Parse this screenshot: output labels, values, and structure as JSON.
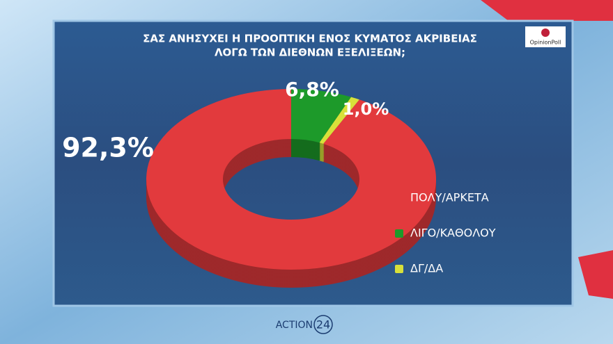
{
  "chart_data": {
    "type": "donut",
    "title": [
      "ΣΑΣ ΑΝΗΣΥΧΕΙ Η ΠΡΟΟΠΤΙΚΗ ΕΝΟΣ ΚΥΜΑΤΟΣ ΑΚΡΙΒΕΙΑΣ",
      "ΛΟΓΩ ΤΩΝ ΔΙΕΘΝΩΝ ΕΞΕΛΙΞΕΩΝ;"
    ],
    "source": "OpinionPoll",
    "channel": [
      "ACTION",
      "24"
    ],
    "categories": [
      "ΠΟΛΥ/ΑΡΚΕΤΑ",
      "ΛΙΓΟ/ΚΑΘΟΛΟΥ",
      "ΔΓ/ΔΑ"
    ],
    "values": [
      92.3,
      6.8,
      1.0
    ],
    "value_labels": [
      "92,3%",
      "6,8%",
      "1,0%"
    ],
    "colors": [
      "#e23a3d",
      "#1d9a2a",
      "#d8e03a"
    ]
  }
}
